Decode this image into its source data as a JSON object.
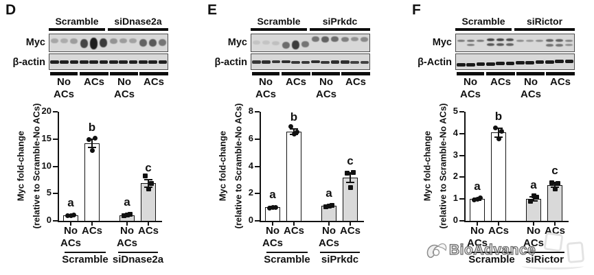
{
  "figure": {
    "panels": [
      {
        "letter": "D",
        "blot": {
          "group1": "Scramble",
          "group2": "siDnase2a",
          "row1": "Myc",
          "row2": "β-actin",
          "cond1_line1": "No",
          "cond1_line2": "ACs",
          "cond2_line1": "ACs",
          "cond3_line1": "No",
          "cond3_line2": "ACs",
          "cond4_line1": "ACs",
          "lanes": {
            "myc": [
              {
                "o": 0.25,
                "h": 7,
                "y": 6,
                "d": 0
              },
              {
                "o": 0.22,
                "h": 7,
                "y": 6,
                "d": 0
              },
              {
                "o": 0.3,
                "h": 8,
                "y": 6,
                "d": 0
              },
              {
                "o": 0.75,
                "h": 13,
                "y": 7,
                "d": 0
              },
              {
                "o": 0.95,
                "h": 17,
                "y": 5,
                "d": 0
              },
              {
                "o": 0.8,
                "h": 13,
                "y": 6,
                "d": 0
              },
              {
                "o": 0.35,
                "h": 8,
                "y": 6,
                "d": 0
              },
              {
                "o": 0.3,
                "h": 7,
                "y": 6,
                "d": 0
              },
              {
                "o": 0.28,
                "h": 7,
                "y": 6,
                "d": 0
              },
              {
                "o": 0.6,
                "h": 11,
                "y": 7,
                "d": 0
              },
              {
                "o": 0.65,
                "h": 11,
                "y": 7,
                "d": 0
              },
              {
                "o": 0.5,
                "h": 10,
                "y": 7,
                "d": 0
              }
            ],
            "actin": [
              {
                "o": 0.92,
                "h": 5,
                "y": 9
              },
              {
                "o": 0.92,
                "h": 5,
                "y": 9
              },
              {
                "o": 0.92,
                "h": 5,
                "y": 9
              },
              {
                "o": 0.92,
                "h": 5,
                "y": 9
              },
              {
                "o": 0.92,
                "h": 5,
                "y": 9
              },
              {
                "o": 0.92,
                "h": 5,
                "y": 9
              },
              {
                "o": 0.92,
                "h": 5,
                "y": 9
              },
              {
                "o": 0.92,
                "h": 5,
                "y": 9
              },
              {
                "o": 0.92,
                "h": 5,
                "y": 9
              },
              {
                "o": 0.92,
                "h": 5,
                "y": 9
              },
              {
                "o": 0.92,
                "h": 5,
                "y": 9
              },
              {
                "o": 0.92,
                "h": 5,
                "y": 9
              }
            ]
          }
        },
        "chart": {
          "type": "bar",
          "ylabel_line1": "Myc fold-change",
          "ylabel_line2": "(relative to Scramble-No ACs)",
          "ylim": [
            0,
            20
          ],
          "yticks": [
            0,
            5,
            10,
            15,
            20
          ],
          "group_labels": [
            "Scramble",
            "siDnase2a"
          ],
          "bars": [
            {
              "label1": "No",
              "label2": "ACs",
              "group": "Scramble",
              "value": 1.0,
              "err": 0.1,
              "points": [
                0.95,
                1.05,
                1.0
              ],
              "sig": "a",
              "fill": "#ffffff",
              "marker": "circle"
            },
            {
              "label1": "ACs",
              "label2": "",
              "group": "Scramble",
              "value": 14.2,
              "err": 0.8,
              "points": [
                14.9,
                15.1,
                12.85
              ],
              "sig": "b",
              "fill": "#ffffff",
              "marker": "circle"
            },
            {
              "label1": "No",
              "label2": "ACs",
              "group": "siDnase2a",
              "value": 1.05,
              "err": 0.15,
              "points": [
                0.9,
                1.2,
                1.05
              ],
              "sig": "a",
              "fill": "#d9d9d9",
              "marker": "square"
            },
            {
              "label1": "ACs",
              "label2": "",
              "group": "siDnase2a",
              "value": 6.9,
              "err": 0.7,
              "points": [
                8.2,
                6.9,
                5.9
              ],
              "sig": "c",
              "fill": "#d9d9d9",
              "marker": "square"
            }
          ]
        }
      },
      {
        "letter": "E",
        "blot": {
          "group1": "Scramble",
          "group2": "siPrkdc",
          "row1": "Myc",
          "row2": "β-actin",
          "cond1_line1": "No",
          "cond1_line2": "ACs",
          "cond2_line1": "ACs",
          "cond3_line1": "No",
          "cond3_line2": "ACs",
          "cond4_line1": "ACs",
          "lanes": {
            "myc": [
              {
                "o": 0.1,
                "h": 6,
                "y": 9,
                "d": 0
              },
              {
                "o": 0.1,
                "h": 6,
                "y": 9,
                "d": 0
              },
              {
                "o": 0.12,
                "h": 6,
                "y": 10,
                "d": 0
              },
              {
                "o": 0.55,
                "h": 10,
                "y": 11,
                "d": 0
              },
              {
                "o": 0.8,
                "h": 13,
                "y": 9,
                "d": 0
              },
              {
                "o": 0.5,
                "h": 9,
                "y": 10,
                "d": 0
              },
              {
                "o": 0.5,
                "h": 8,
                "y": 3,
                "d": 0
              },
              {
                "o": 0.6,
                "h": 9,
                "y": 3,
                "d": 0
              },
              {
                "o": 0.55,
                "h": 8,
                "y": 3,
                "d": 0
              },
              {
                "o": 0.45,
                "h": 7,
                "y": 4,
                "d": 0
              },
              {
                "o": 0.35,
                "h": 6,
                "y": 4,
                "d": 0
              },
              {
                "o": 0.4,
                "h": 7,
                "y": 4,
                "d": 0
              }
            ],
            "actin": [
              {
                "o": 0.8,
                "h": 5,
                "y": 9
              },
              {
                "o": 0.85,
                "h": 5,
                "y": 9
              },
              {
                "o": 0.8,
                "h": 4,
                "y": 9
              },
              {
                "o": 0.85,
                "h": 4,
                "y": 9
              },
              {
                "o": 0.8,
                "h": 4,
                "y": 10
              },
              {
                "o": 0.8,
                "h": 4,
                "y": 10
              },
              {
                "o": 0.85,
                "h": 4,
                "y": 9
              },
              {
                "o": 0.8,
                "h": 4,
                "y": 10
              },
              {
                "o": 0.85,
                "h": 5,
                "y": 9
              },
              {
                "o": 0.85,
                "h": 5,
                "y": 9
              },
              {
                "o": 0.75,
                "h": 4,
                "y": 10
              },
              {
                "o": 0.75,
                "h": 4,
                "y": 10
              }
            ]
          }
        },
        "chart": {
          "type": "bar",
          "ylabel_line1": "Myc fold-change",
          "ylabel_line2": "(relative to Scramble-No ACs)",
          "ylim": [
            0,
            8
          ],
          "yticks": [
            0,
            2,
            4,
            6,
            8
          ],
          "group_labels": [
            "Scramble",
            "siPrkdc"
          ],
          "bars": [
            {
              "label1": "No",
              "label2": "ACs",
              "group": "Scramble",
              "value": 1.0,
              "err": 0.05,
              "points": [
                0.95,
                1.0,
                1.0
              ],
              "sig": "a",
              "fill": "#ffffff",
              "marker": "circle"
            },
            {
              "label1": "ACs",
              "label2": "",
              "group": "Scramble",
              "value": 6.55,
              "err": 0.2,
              "points": [
                6.9,
                6.5,
                6.35
              ],
              "sig": "b",
              "fill": "#ffffff",
              "marker": "circle"
            },
            {
              "label1": "No",
              "label2": "ACs",
              "group": "siPrkdc",
              "value": 1.1,
              "err": 0.05,
              "points": [
                1.05,
                1.15,
                1.1
              ],
              "sig": "a",
              "fill": "#d9d9d9",
              "marker": "square"
            },
            {
              "label1": "ACs",
              "label2": "",
              "group": "siPrkdc",
              "value": 3.15,
              "err": 0.35,
              "points": [
                3.5,
                3.55,
                2.45
              ],
              "sig": "c",
              "fill": "#d9d9d9",
              "marker": "square"
            }
          ]
        }
      },
      {
        "letter": "F",
        "blot": {
          "group1": "Scramble",
          "group2": "siRictor",
          "row1": "Myc",
          "row2": "β-Actin",
          "cond1_line1": "No",
          "cond1_line2": "ACs",
          "cond2_line1": "ACs",
          "cond3_line1": "No",
          "cond3_line2": "ACs",
          "cond4_line1": "ACs",
          "lanes": {
            "myc": [
              {
                "o": 0.5,
                "h": 3,
                "y": 8,
                "d": 0
              },
              {
                "o": 0.55,
                "h": 3,
                "y": 8,
                "d": 1
              },
              {
                "o": 0.5,
                "h": 3,
                "y": 8,
                "d": 0
              },
              {
                "o": 0.75,
                "h": 4,
                "y": 6,
                "d": 1
              },
              {
                "o": 0.75,
                "h": 4,
                "y": 6,
                "d": 1
              },
              {
                "o": 0.7,
                "h": 4,
                "y": 6,
                "d": 1
              },
              {
                "o": 0.4,
                "h": 3,
                "y": 8,
                "d": 0
              },
              {
                "o": 0.35,
                "h": 3,
                "y": 8,
                "d": 0
              },
              {
                "o": 0.4,
                "h": 3,
                "y": 8,
                "d": 0
              },
              {
                "o": 0.6,
                "h": 4,
                "y": 7,
                "d": 1
              },
              {
                "o": 0.6,
                "h": 4,
                "y": 7,
                "d": 1
              },
              {
                "o": 0.45,
                "h": 3,
                "y": 8,
                "d": 1
              }
            ],
            "actin": [
              {
                "o": 0.95,
                "h": 5,
                "y": 13
              },
              {
                "o": 0.95,
                "h": 5,
                "y": 13
              },
              {
                "o": 0.95,
                "h": 5,
                "y": 12
              },
              {
                "o": 0.95,
                "h": 5,
                "y": 12
              },
              {
                "o": 0.95,
                "h": 5,
                "y": 11
              },
              {
                "o": 0.95,
                "h": 5,
                "y": 11
              },
              {
                "o": 0.95,
                "h": 5,
                "y": 10
              },
              {
                "o": 0.95,
                "h": 5,
                "y": 10
              },
              {
                "o": 0.95,
                "h": 5,
                "y": 9
              },
              {
                "o": 0.95,
                "h": 5,
                "y": 9
              },
              {
                "o": 0.95,
                "h": 5,
                "y": 8
              },
              {
                "o": 0.95,
                "h": 5,
                "y": 8
              }
            ]
          }
        },
        "chart": {
          "type": "bar",
          "ylabel_line1": "Myc fold-change",
          "ylabel_line2": "(relative to Scramble-No ACs)",
          "ylim": [
            0,
            5
          ],
          "yticks": [
            0,
            1,
            2,
            3,
            4,
            5
          ],
          "group_labels": [
            "Scramble",
            "siRictor"
          ],
          "bars": [
            {
              "label1": "No",
              "label2": "ACs",
              "group": "Scramble",
              "value": 1.0,
              "err": 0.05,
              "points": [
                0.95,
                1.05,
                1.0
              ],
              "sig": "a",
              "fill": "#ffffff",
              "marker": "circle"
            },
            {
              "label1": "ACs",
              "label2": "",
              "group": "Scramble",
              "value": 4.05,
              "err": 0.2,
              "points": [
                4.25,
                4.1,
                3.75
              ],
              "sig": "b",
              "fill": "#ffffff",
              "marker": "circle"
            },
            {
              "label1": "No",
              "label2": "ACs",
              "group": "siRictor",
              "value": 1.0,
              "err": 0.1,
              "points": [
                0.9,
                1.1,
                1.15
              ],
              "sig": "a",
              "fill": "#d9d9d9",
              "marker": "square"
            },
            {
              "label1": "ACs",
              "label2": "",
              "group": "siRictor",
              "value": 1.65,
              "err": 0.1,
              "points": [
                1.75,
                1.7,
                1.45
              ],
              "sig": "c",
              "fill": "#d9d9d9",
              "marker": "square"
            }
          ]
        }
      }
    ]
  },
  "chart_data": [
    {
      "type": "bar",
      "panel": "D",
      "categories": [
        "Scramble-No ACs",
        "Scramble-ACs",
        "siDnase2a-No ACs",
        "siDnase2a-ACs"
      ],
      "values": [
        1.0,
        14.2,
        1.05,
        6.9
      ],
      "errors": [
        0.1,
        0.8,
        0.15,
        0.7
      ],
      "points": [
        [
          0.95,
          1.05,
          1.0
        ],
        [
          14.9,
          15.1,
          12.85
        ],
        [
          0.9,
          1.2,
          1.05
        ],
        [
          8.2,
          6.9,
          5.9
        ]
      ],
      "sig_letters": [
        "a",
        "b",
        "a",
        "c"
      ],
      "ylabel": "Myc fold-change (relative to Scramble-No ACs)",
      "ylim": [
        0,
        20
      ],
      "yticks": [
        0,
        5,
        10,
        15,
        20
      ],
      "grid": false,
      "legend": "none"
    },
    {
      "type": "bar",
      "panel": "E",
      "categories": [
        "Scramble-No ACs",
        "Scramble-ACs",
        "siPrkdc-No ACs",
        "siPrkdc-ACs"
      ],
      "values": [
        1.0,
        6.55,
        1.1,
        3.15
      ],
      "errors": [
        0.05,
        0.2,
        0.05,
        0.35
      ],
      "points": [
        [
          0.95,
          1.0,
          1.0
        ],
        [
          6.9,
          6.5,
          6.35
        ],
        [
          1.05,
          1.15,
          1.1
        ],
        [
          3.5,
          3.55,
          2.45
        ]
      ],
      "sig_letters": [
        "a",
        "b",
        "a",
        "c"
      ],
      "ylabel": "Myc fold-change (relative to Scramble-No ACs)",
      "ylim": [
        0,
        8
      ],
      "yticks": [
        0,
        2,
        4,
        6,
        8
      ],
      "grid": false,
      "legend": "none"
    },
    {
      "type": "bar",
      "panel": "F",
      "categories": [
        "Scramble-No ACs",
        "Scramble-ACs",
        "siRictor-No ACs",
        "siRictor-ACs"
      ],
      "values": [
        1.0,
        4.05,
        1.0,
        1.65
      ],
      "errors": [
        0.05,
        0.2,
        0.1,
        0.1
      ],
      "points": [
        [
          0.95,
          1.05,
          1.0
        ],
        [
          4.25,
          4.1,
          3.75
        ],
        [
          0.9,
          1.1,
          1.15
        ],
        [
          1.75,
          1.7,
          1.45
        ]
      ],
      "sig_letters": [
        "a",
        "b",
        "a",
        "c"
      ],
      "ylabel": "Myc fold-change (relative to Scramble-No ACs)",
      "ylim": [
        0,
        5
      ],
      "yticks": [
        0,
        1,
        2,
        3,
        4,
        5
      ],
      "grid": false,
      "legend": "none"
    }
  ],
  "watermark": {
    "text": "BioAdvance",
    "logo": "bioadvance-logo"
  },
  "colors": {
    "bar_scramble": "#ffffff",
    "bar_sirna": "#d9d9d9",
    "axis": "#111111",
    "blot_bg": "#d8d8d8"
  }
}
